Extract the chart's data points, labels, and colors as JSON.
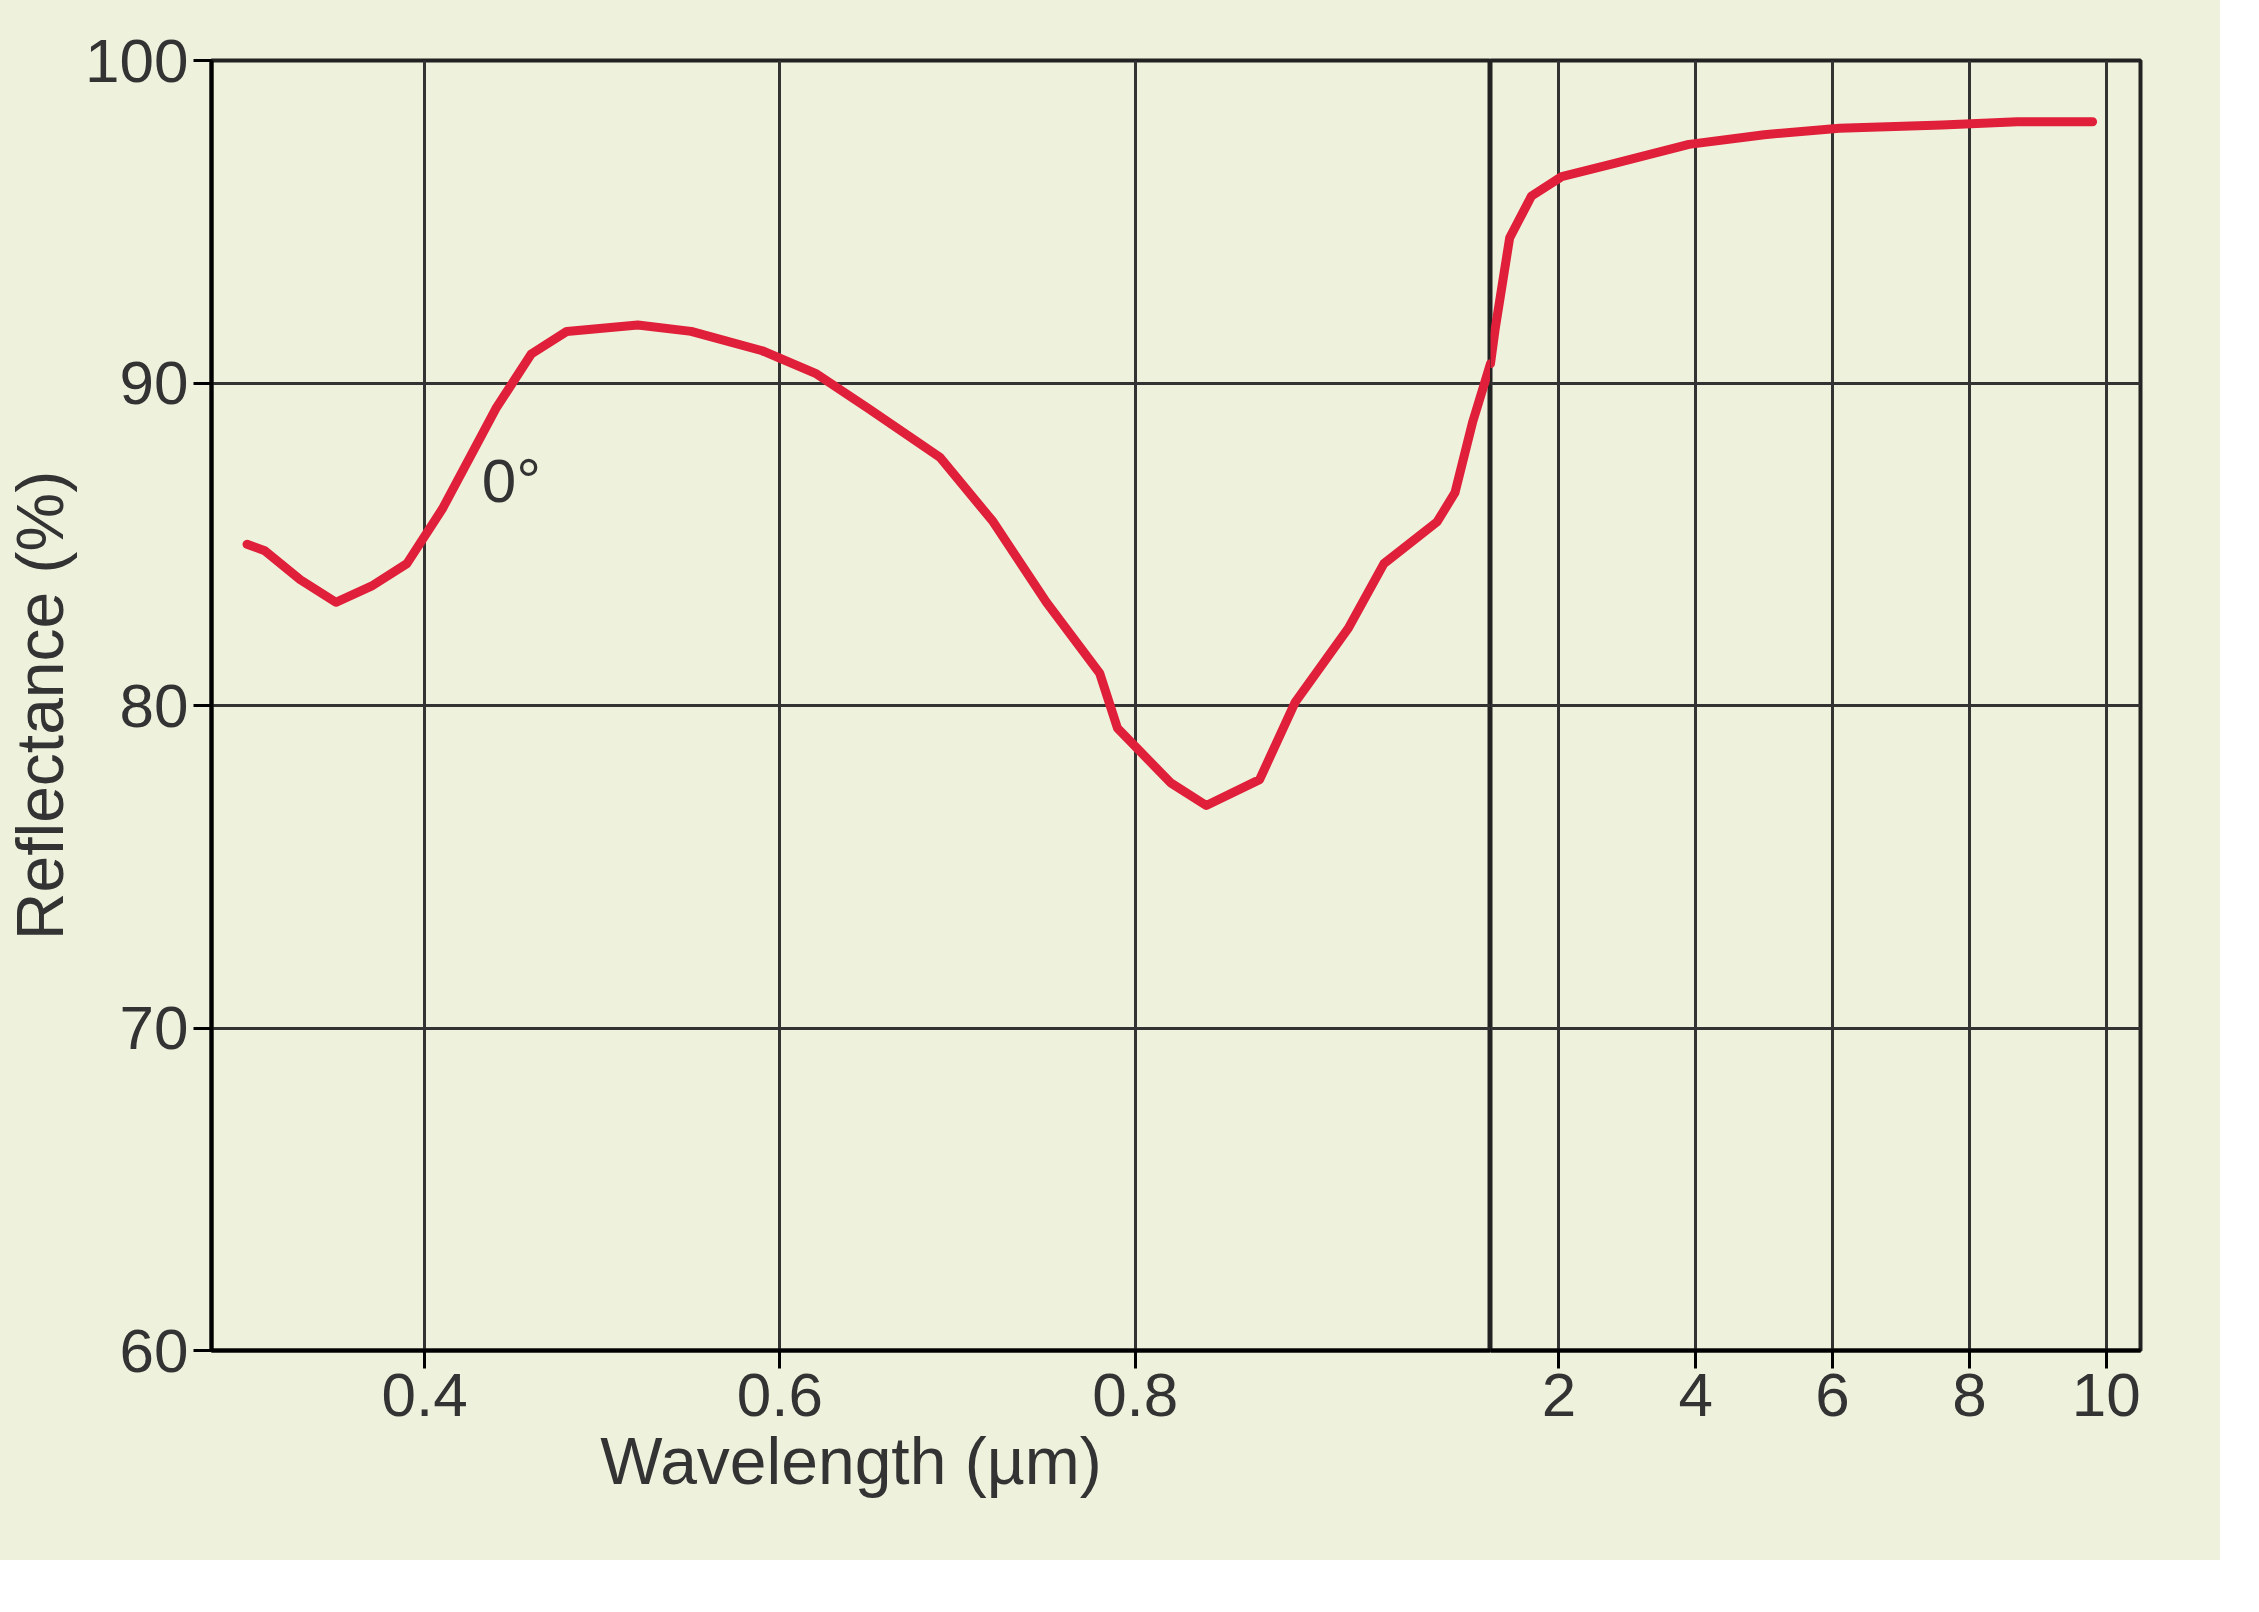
{
  "chart_data": [
    {
      "type": "line",
      "xlabel": "Wavelength (µm)",
      "ylabel": "Reflectance (%)",
      "xlim": [
        0.28,
        1.0
      ],
      "ylim": [
        60,
        100
      ],
      "xticks": [
        0.4,
        0.6,
        0.8
      ],
      "yticks": [
        60,
        70,
        80,
        90,
        100
      ],
      "grid": true,
      "marker": "none",
      "line_style": "solid",
      "annotations": [
        "0°"
      ],
      "series": [
        {
          "color": "#e0203a",
          "x": [
            0.3,
            0.31,
            0.33,
            0.35,
            0.37,
            0.39,
            0.41,
            0.44,
            0.46,
            0.48,
            0.52,
            0.55,
            0.59,
            0.62,
            0.65,
            0.69,
            0.72,
            0.75,
            0.78,
            0.79,
            0.82,
            0.84,
            0.87,
            0.89,
            0.92,
            0.94,
            0.97,
            0.98,
            0.99,
            1.0
          ],
          "values": [
            85.0,
            84.8,
            83.9,
            83.2,
            83.7,
            84.4,
            86.1,
            89.2,
            90.9,
            91.6,
            91.8,
            91.6,
            91.0,
            90.3,
            89.2,
            87.7,
            85.7,
            83.2,
            81.0,
            79.3,
            77.6,
            76.9,
            77.7,
            80.1,
            82.4,
            84.4,
            85.7,
            86.6,
            88.8,
            90.6
          ]
        }
      ]
    },
    {
      "type": "line",
      "xlim": [
        1.0,
        10.5
      ],
      "ylim": [
        60,
        100
      ],
      "xticks": [
        2,
        4,
        6,
        8,
        10
      ],
      "yticks": [
        60,
        70,
        80,
        90,
        100
      ],
      "tick_labels": "x",
      "grid": true,
      "marker": "none",
      "line_style": "solid",
      "series": [
        {
          "color": "#e0203a",
          "x": [
            1.0,
            1.07,
            1.28,
            1.6,
            2.04,
            2.8,
            3.9,
            5.0,
            6.1,
            7.6,
            8.7,
            9.8
          ],
          "values": [
            90.6,
            91.7,
            94.5,
            95.8,
            96.4,
            96.8,
            97.4,
            97.7,
            97.9,
            98.0,
            98.1,
            98.1
          ]
        }
      ]
    }
  ]
}
